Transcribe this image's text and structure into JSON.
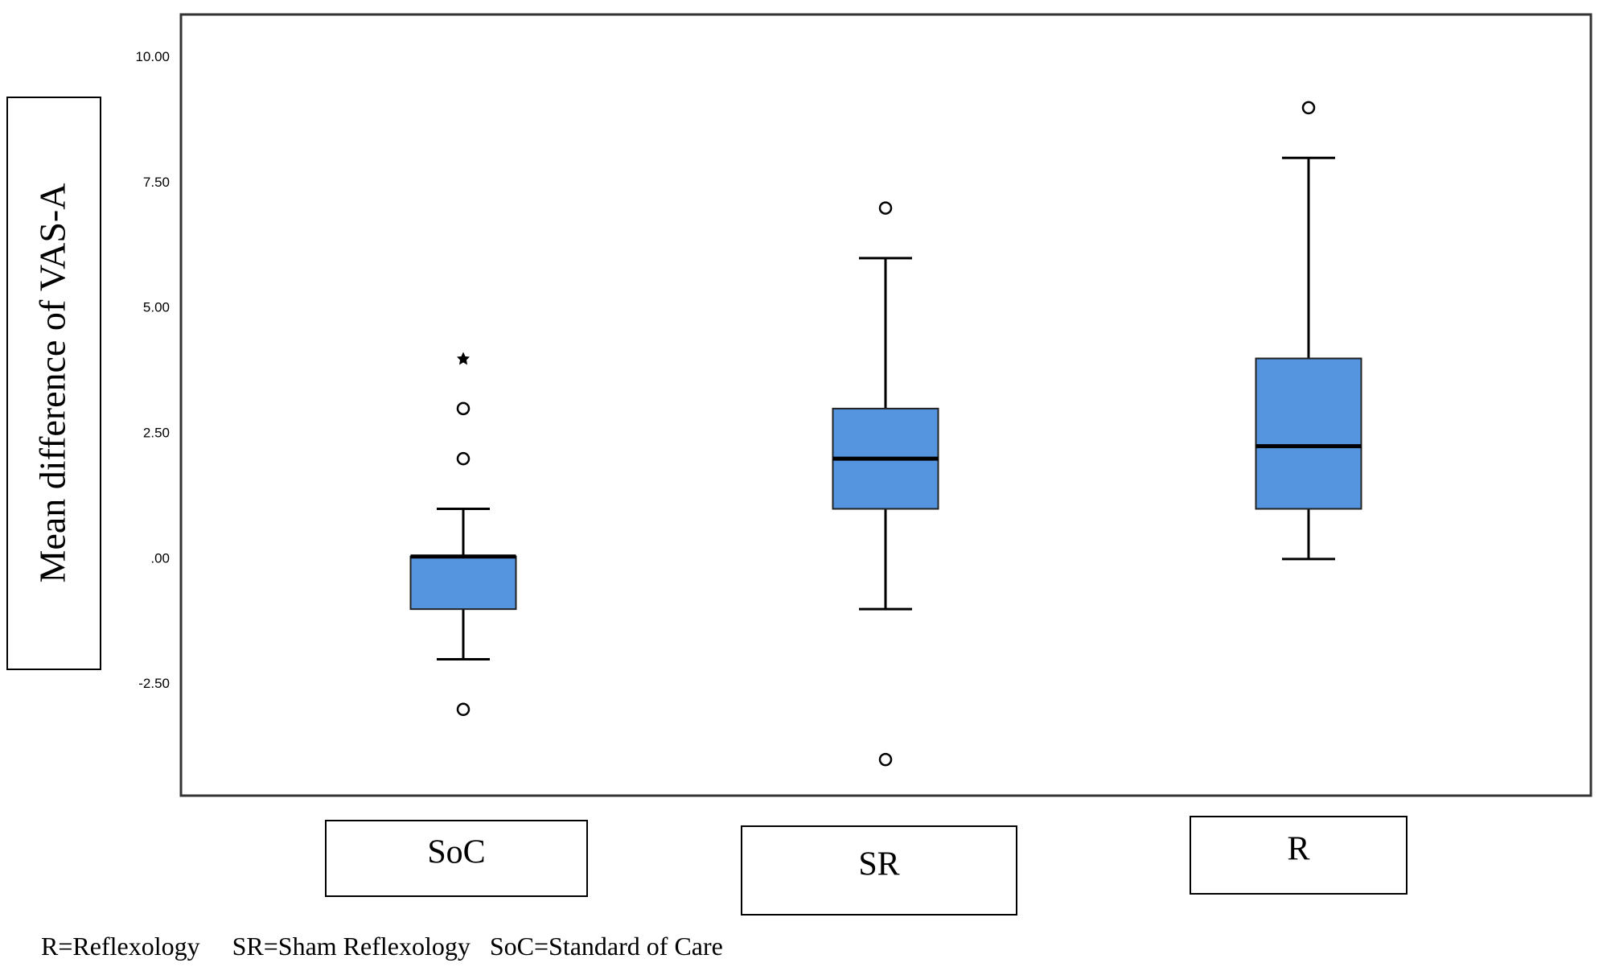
{
  "chart_data": {
    "type": "box",
    "y_label": "Mean difference of  VAS-A",
    "categories": [
      "SoC",
      "SR",
      "R"
    ],
    "color": "#5595e0",
    "boxes": [
      {
        "whisker_low": -2,
        "q1": -1,
        "median": 0.05,
        "q3": 0.05,
        "whisker_high": 1,
        "outliers": [
          -3,
          2,
          3
        ],
        "extremes": [
          4
        ]
      },
      {
        "whisker_low": -1,
        "q1": 1,
        "median": 2,
        "q3": 3,
        "whisker_high": 6,
        "outliers": [
          7,
          -4
        ],
        "extremes": []
      },
      {
        "whisker_low": 0,
        "q1": 1,
        "median": 2.25,
        "q3": 4,
        "whisker_high": 8,
        "outliers": [
          9
        ],
        "extremes": []
      }
    ],
    "ylim": [
      -4.72,
      10.86
    ],
    "yticks": [
      {
        "value": 10,
        "label": "10.00"
      },
      {
        "value": 7.5,
        "label": "7.50"
      },
      {
        "value": 5,
        "label": "5.00"
      },
      {
        "value": 2.5,
        "label": "2.50"
      },
      {
        "value": 0,
        "label": ".00"
      },
      {
        "value": -2.5,
        "label": "-2.50"
      }
    ],
    "footnote": "R=Reflexology     SR=Sham Reflexology   SoC=Standard of Care"
  }
}
